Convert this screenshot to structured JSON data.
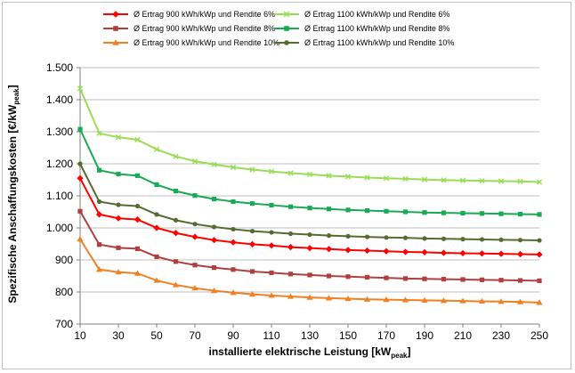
{
  "chart_data": {
    "type": "line",
    "xlabel": "installierte elektrische Leistung [kW",
    "xlabel_sub": "peak",
    "xlabel_end": "]",
    "ylabel": "Spezifische Anschaffungskosten [€/kW",
    "ylabel_sub": "peak",
    "ylabel_end": "]",
    "xlim": [
      10,
      250
    ],
    "ylim": [
      700,
      1500
    ],
    "x_ticks": [
      10,
      30,
      50,
      70,
      90,
      110,
      130,
      150,
      170,
      190,
      210,
      230,
      250
    ],
    "y_ticks": [
      700,
      800,
      900,
      1000,
      1100,
      1200,
      1300,
      1400,
      1500
    ],
    "y_tick_labels": [
      "700",
      "800",
      "900",
      "1.000",
      "1.100",
      "1.200",
      "1.300",
      "1.400",
      "1.500"
    ],
    "grid": "horizontal",
    "legend_position": "top",
    "x": [
      10,
      20,
      30,
      40,
      50,
      60,
      70,
      80,
      90,
      100,
      110,
      120,
      130,
      140,
      150,
      160,
      170,
      180,
      190,
      200,
      210,
      220,
      230,
      240,
      250
    ],
    "series": [
      {
        "name": "Ø  Ertrag  900 kWh/kWp und Rendite 6%",
        "color": "#ff0000",
        "marker": "diamond",
        "values": [
          1155,
          1042,
          1030,
          1026,
          1000,
          984,
          972,
          962,
          955,
          949,
          945,
          940,
          937,
          934,
          931,
          929,
          927,
          925,
          924,
          922,
          921,
          920,
          919,
          918,
          917
        ]
      },
      {
        "name": "Ø  Ertrag  900 kWh/kWp und Rendite 8%",
        "color": "#b04040",
        "marker": "square",
        "values": [
          1052,
          948,
          938,
          935,
          910,
          895,
          884,
          876,
          870,
          864,
          860,
          856,
          853,
          850,
          848,
          846,
          844,
          842,
          841,
          840,
          839,
          838,
          837,
          836,
          835
        ]
      },
      {
        "name": "Ø  Ertrag  900 kWh/kWp und Rendite 10%",
        "color": "#f08020",
        "marker": "triangle",
        "values": [
          965,
          870,
          862,
          858,
          836,
          822,
          812,
          804,
          798,
          793,
          789,
          786,
          783,
          781,
          779,
          777,
          776,
          775,
          774,
          773,
          772,
          771,
          770,
          769,
          767
        ]
      },
      {
        "name": "Ø  Ertrag  1100 kWh/kWp und Rendite 6%",
        "color": "#99dd55",
        "marker": "x",
        "values": [
          1435,
          1295,
          1283,
          1275,
          1245,
          1223,
          1208,
          1198,
          1189,
          1182,
          1176,
          1171,
          1167,
          1163,
          1160,
          1157,
          1155,
          1153,
          1151,
          1149,
          1148,
          1147,
          1146,
          1145,
          1143
        ]
      },
      {
        "name": "Ø  Ertrag  1100 kWh/kWp und Rendite 8%",
        "color": "#1aaa55",
        "marker": "square",
        "values": [
          1308,
          1180,
          1168,
          1163,
          1135,
          1115,
          1101,
          1090,
          1082,
          1076,
          1071,
          1066,
          1062,
          1059,
          1056,
          1054,
          1052,
          1050,
          1048,
          1047,
          1046,
          1045,
          1044,
          1043,
          1042
        ]
      },
      {
        "name": "Ø  Ertrag  1100 kWh/kWp und Rendite 10%",
        "color": "#556b2f",
        "marker": "circle",
        "values": [
          1200,
          1082,
          1072,
          1068,
          1042,
          1024,
          1012,
          1003,
          996,
          990,
          986,
          982,
          979,
          976,
          974,
          972,
          970,
          969,
          967,
          966,
          965,
          964,
          963,
          962,
          961
        ]
      }
    ]
  }
}
